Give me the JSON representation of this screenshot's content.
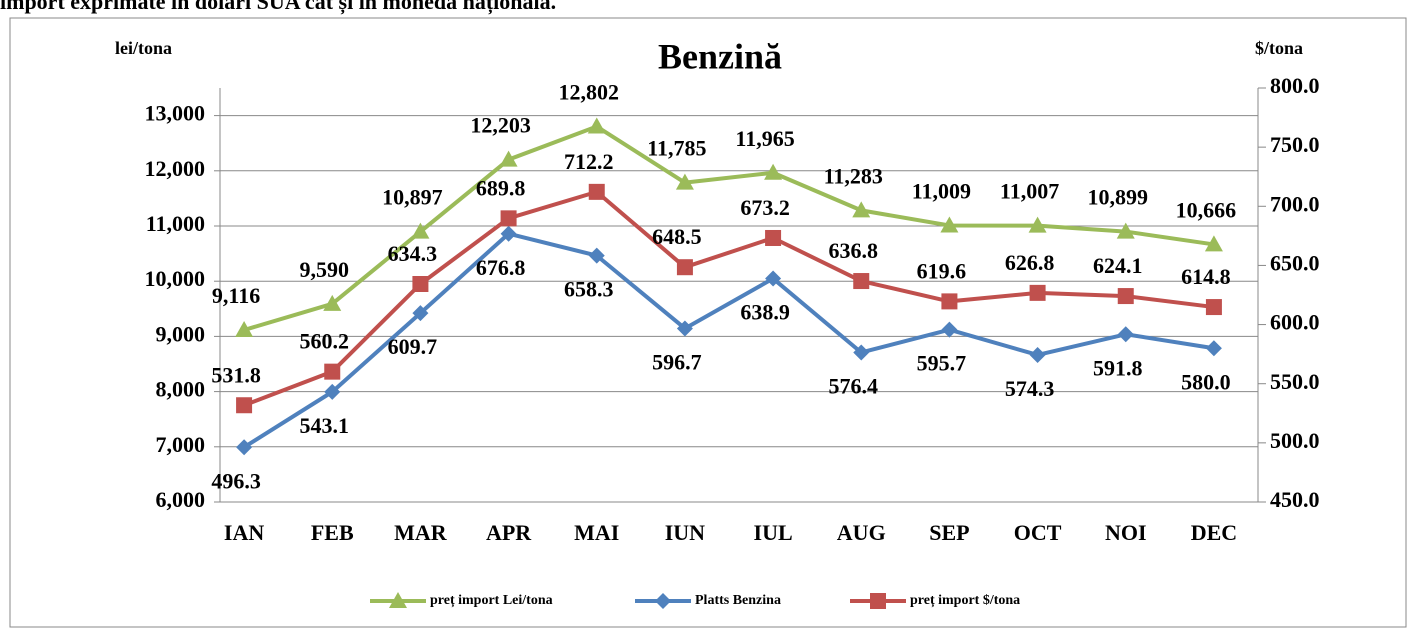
{
  "header_text": "import exprimate în dolari SUA cât și în moneda națională.",
  "chart_data": {
    "type": "line",
    "title": "Benzină",
    "y_label": "lei/tona",
    "y2_label": "$/tona",
    "categories": [
      "IAN",
      "FEB",
      "MAR",
      "APR",
      "MAI",
      "IUN",
      "IUL",
      "AUG",
      "SEP",
      "OCT",
      "NOI",
      "DEC"
    ],
    "series": [
      {
        "name": "preț import Lei/tona",
        "color": "#9bbb59",
        "marker": "triangle",
        "axis": "y",
        "values": [
          9116,
          9590,
          10897,
          12203,
          12802,
          11785,
          11965,
          11283,
          11009,
          11007,
          10899,
          10666
        ],
        "value_labels": [
          "9,116",
          "9,590",
          "10,897",
          "12,203",
          "12,802",
          "11,785",
          "11,965",
          "11,283",
          "11,009",
          "11,007",
          "10,899",
          "10,666"
        ]
      },
      {
        "name": "Platts Benzina",
        "color": "#4f81bd",
        "marker": "diamond",
        "axis": "y2",
        "values": [
          496.3,
          543.1,
          609.7,
          676.8,
          658.3,
          596.7,
          638.9,
          576.4,
          595.7,
          574.3,
          591.8,
          580.0
        ],
        "value_labels": [
          "496.3",
          "543.1",
          "609.7",
          "676.8",
          "658.3",
          "596.7",
          "638.9",
          "576.4",
          "595.7",
          "574.3",
          "591.8",
          "580.0"
        ]
      },
      {
        "name": "preț import $/tona",
        "color": "#c0504d",
        "marker": "square",
        "axis": "y2",
        "values": [
          531.8,
          560.2,
          634.3,
          689.8,
          712.2,
          648.5,
          673.2,
          636.8,
          619.6,
          626.8,
          624.1,
          614.8
        ],
        "value_labels": [
          "531.8",
          "560.2",
          "634.3",
          "689.8",
          "712.2",
          "648.5",
          "673.2",
          "636.8",
          "619.6",
          "626.8",
          "624.1",
          "614.8"
        ]
      }
    ],
    "ylim": [
      6000,
      13500
    ],
    "yticks": [
      {
        "value": 6000,
        "label": "6,000"
      },
      {
        "value": 7000,
        "label": "7,000"
      },
      {
        "value": 8000,
        "label": "8,000"
      },
      {
        "value": 9000,
        "label": "9,000"
      },
      {
        "value": 10000,
        "label": "10,000"
      },
      {
        "value": 11000,
        "label": "11,000"
      },
      {
        "value": 12000,
        "label": "12,000"
      },
      {
        "value": 13000,
        "label": "13,000"
      }
    ],
    "y2lim": [
      450,
      800
    ],
    "y2ticks": [
      {
        "value": 450,
        "label": "450.0"
      },
      {
        "value": 500,
        "label": "500.0"
      },
      {
        "value": 550,
        "label": "550.0"
      },
      {
        "value": 600,
        "label": "600.0"
      },
      {
        "value": 650,
        "label": "650.0"
      },
      {
        "value": 700,
        "label": "700.0"
      },
      {
        "value": 750,
        "label": "750.0"
      },
      {
        "value": 800,
        "label": "800.0"
      }
    ],
    "grid": true,
    "legend": "bottom"
  }
}
